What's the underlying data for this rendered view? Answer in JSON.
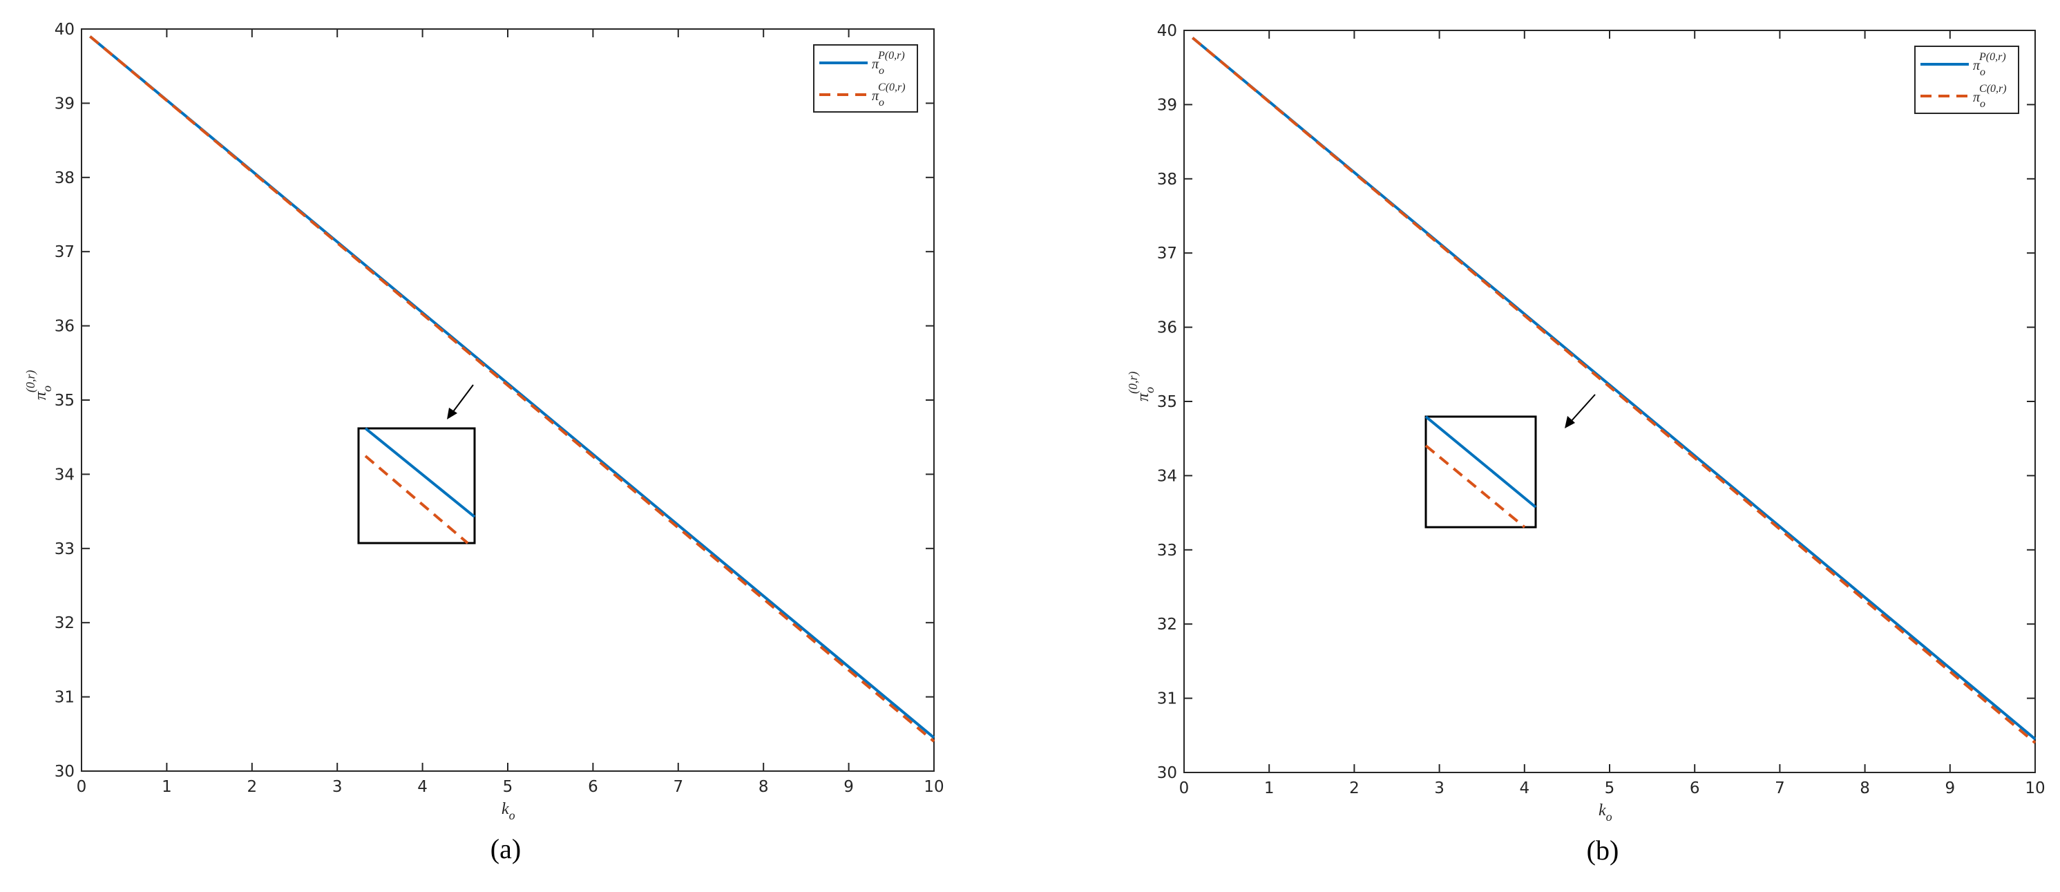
{
  "chart_data": [
    {
      "type": "line",
      "caption": "(a)",
      "x": [
        0.1,
        10
      ],
      "series": [
        {
          "name": "π",
          "sub": "o",
          "sup": "P(0,r)",
          "color": "#0072bd",
          "dash": false,
          "values": [
            39.9,
            30.45
          ]
        },
        {
          "name": "π",
          "sub": "o",
          "sup": "C(0,r)",
          "color": "#d95319",
          "dash": true,
          "values": [
            39.9,
            30.4
          ]
        }
      ],
      "xlabel": {
        "text": "k",
        "sub": "o"
      },
      "ylabel": {
        "text": "π",
        "sub": "o",
        "sup": "(0,r)"
      },
      "xlim": [
        0,
        10
      ],
      "xticks": [
        0,
        1,
        2,
        3,
        4,
        5,
        6,
        7,
        8,
        9,
        10
      ],
      "ylim": [
        30,
        40
      ],
      "yticks": [
        30,
        31,
        32,
        33,
        34,
        35,
        36,
        37,
        38,
        39,
        40
      ],
      "legend": "upper-right"
    },
    {
      "type": "line",
      "caption": "(b)",
      "x": [
        0.1,
        10
      ],
      "series": [
        {
          "name": "π",
          "sub": "o",
          "sup": "P(0,r)",
          "color": "#0072bd",
          "dash": false,
          "values": [
            39.9,
            30.45
          ]
        },
        {
          "name": "π",
          "sub": "o",
          "sup": "C(0,r)",
          "color": "#d95319",
          "dash": true,
          "values": [
            39.9,
            30.4
          ]
        }
      ],
      "xlabel": {
        "text": "k",
        "sub": "o"
      },
      "ylabel": {
        "text": "π",
        "sub": "o",
        "sup": "(0,r)"
      },
      "xlim": [
        0,
        10
      ],
      "xticks": [
        0,
        1,
        2,
        3,
        4,
        5,
        6,
        7,
        8,
        9,
        10
      ],
      "ylim": [
        30,
        40
      ],
      "yticks": [
        30,
        31,
        32,
        33,
        34,
        35,
        36,
        37,
        38,
        39,
        40
      ],
      "legend": "upper-right"
    }
  ]
}
